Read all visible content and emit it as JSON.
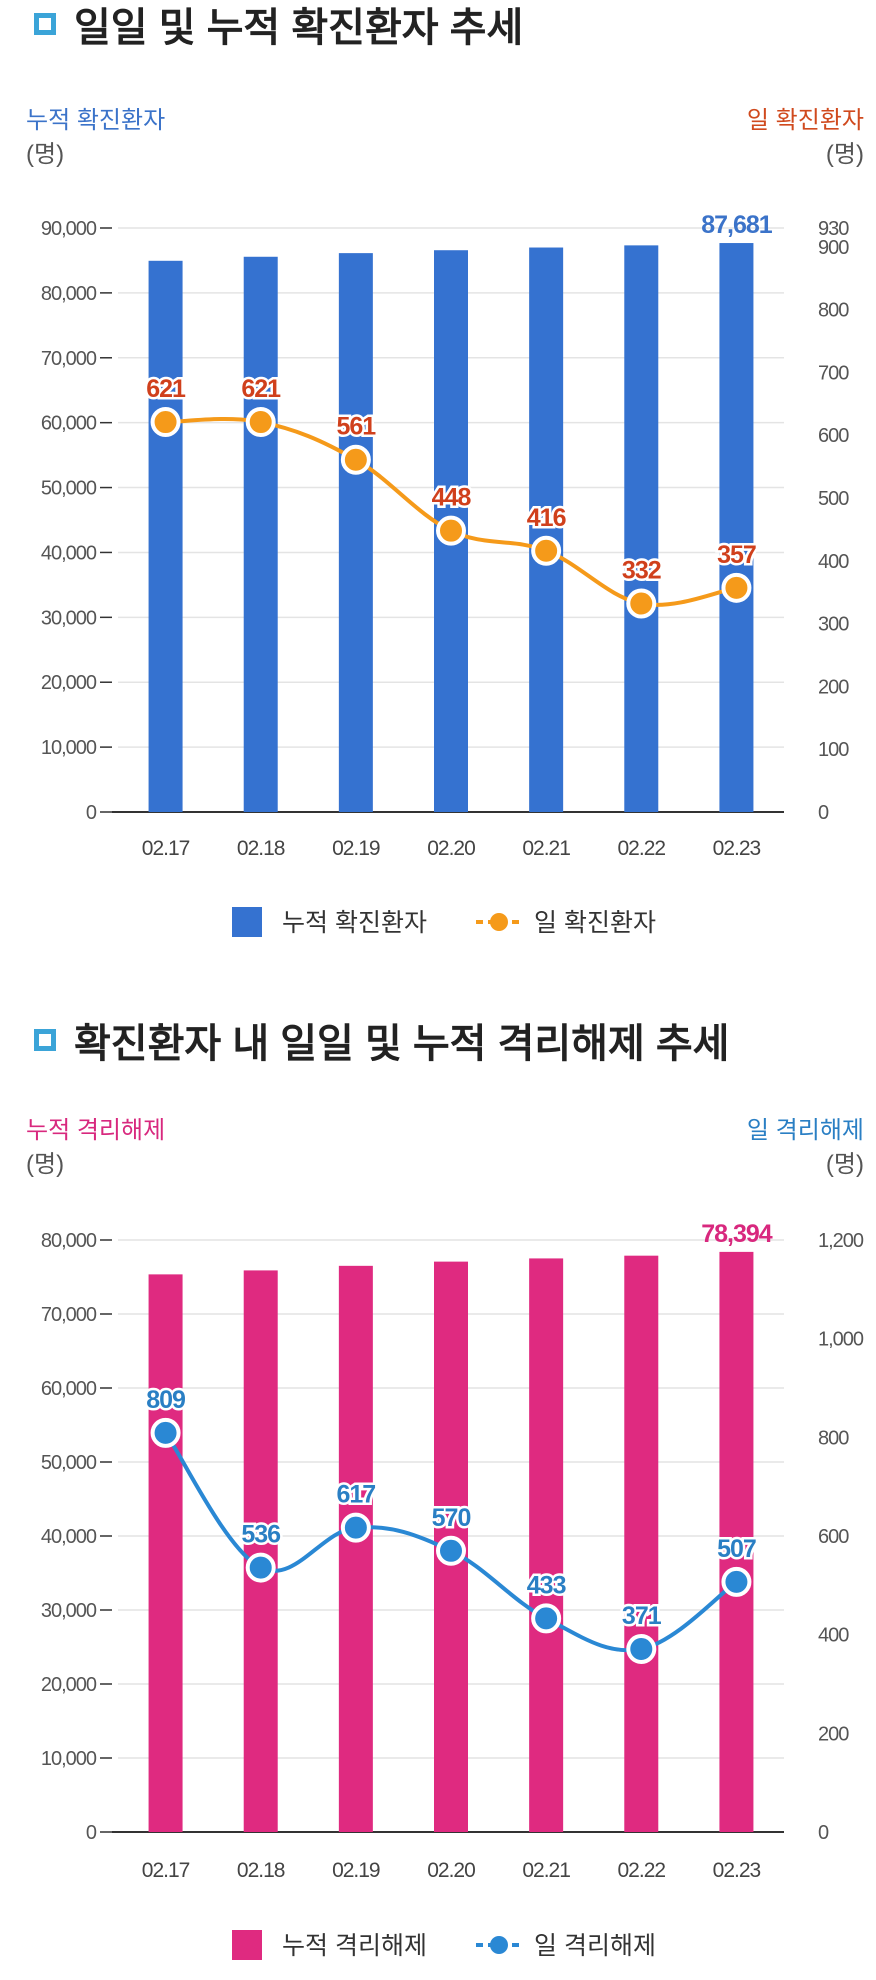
{
  "sections": [
    {
      "title": "일일 및 누적 확진환자 추세",
      "left_axis_label": "누적 확진환자",
      "right_axis_label": "일 확진환자",
      "unit": "(명)",
      "colors": {
        "bar": "#3572d0",
        "line": "#f59a1a",
        "left_label": "#3b73c9",
        "right_label": "#d04a1e",
        "line_value": "#d0401c",
        "bar_value": "#3b73c9"
      }
    },
    {
      "title": "확진환자 내 일일 및 누적 격리해제 추세",
      "left_axis_label": "누적 격리해제",
      "right_axis_label": "일 격리해제",
      "unit": "(명)",
      "colors": {
        "bar": "#df2a80",
        "line": "#2a88d4",
        "left_label": "#d8287e",
        "right_label": "#2a7fc4",
        "line_value": "#2a7fc4",
        "bar_value": "#d8287e"
      }
    }
  ],
  "chart_data": [
    {
      "type": "bar",
      "categories": [
        "02.17",
        "02.18",
        "02.19",
        "02.20",
        "02.21",
        "02.22",
        "02.23"
      ],
      "series": [
        {
          "name": "누적 확진환자",
          "type": "bar",
          "axis": "left",
          "values": [
            84946,
            85567,
            86128,
            86576,
            86992,
            87324,
            87681
          ]
        },
        {
          "name": "일 확진환자",
          "type": "line",
          "axis": "right",
          "values": [
            621,
            621,
            561,
            448,
            416,
            332,
            357
          ]
        }
      ],
      "bar_labels": [
        "",
        "",
        "",
        "",
        "",
        "",
        "87,681"
      ],
      "line_labels": [
        "621",
        "621",
        "561",
        "448",
        "416",
        "332",
        "357"
      ],
      "left_ticks": [
        "0",
        "10,000",
        "20,000",
        "30,000",
        "40,000",
        "50,000",
        "60,000",
        "70,000",
        "80,000",
        "90,000"
      ],
      "left_tick_values": [
        0,
        10000,
        20000,
        30000,
        40000,
        50000,
        60000,
        70000,
        80000,
        90000
      ],
      "right_ticks": [
        "0",
        "100",
        "200",
        "300",
        "400",
        "500",
        "600",
        "700",
        "800",
        "900",
        "930"
      ],
      "right_tick_values": [
        0,
        100,
        200,
        300,
        400,
        500,
        600,
        700,
        800,
        900,
        930
      ],
      "ylim_left": [
        0,
        90000
      ],
      "ylim_right": [
        0,
        930
      ],
      "grid": true
    },
    {
      "type": "bar",
      "categories": [
        "02.17",
        "02.18",
        "02.19",
        "02.20",
        "02.21",
        "02.22",
        "02.23"
      ],
      "series": [
        {
          "name": "누적 격리해제",
          "type": "bar",
          "axis": "left",
          "values": [
            75355,
            75891,
            76508,
            77078,
            77511,
            77882,
            78394
          ]
        },
        {
          "name": "일 격리해제",
          "type": "line",
          "axis": "right",
          "values": [
            809,
            536,
            617,
            570,
            433,
            371,
            507
          ]
        }
      ],
      "bar_labels": [
        "",
        "",
        "",
        "",
        "",
        "",
        "78,394"
      ],
      "line_labels": [
        "809",
        "536",
        "617",
        "570",
        "433",
        "371",
        "507"
      ],
      "left_ticks": [
        "0",
        "10,000",
        "20,000",
        "30,000",
        "40,000",
        "50,000",
        "60,000",
        "70,000",
        "80,000"
      ],
      "left_tick_values": [
        0,
        10000,
        20000,
        30000,
        40000,
        50000,
        60000,
        70000,
        80000
      ],
      "right_ticks": [
        "0",
        "200",
        "400",
        "600",
        "800",
        "1,000",
        "1,200"
      ],
      "right_tick_values": [
        0,
        200,
        400,
        600,
        800,
        1000,
        1200
      ],
      "ylim_left": [
        0,
        80000
      ],
      "ylim_right": [
        0,
        1200
      ],
      "grid": true
    }
  ]
}
